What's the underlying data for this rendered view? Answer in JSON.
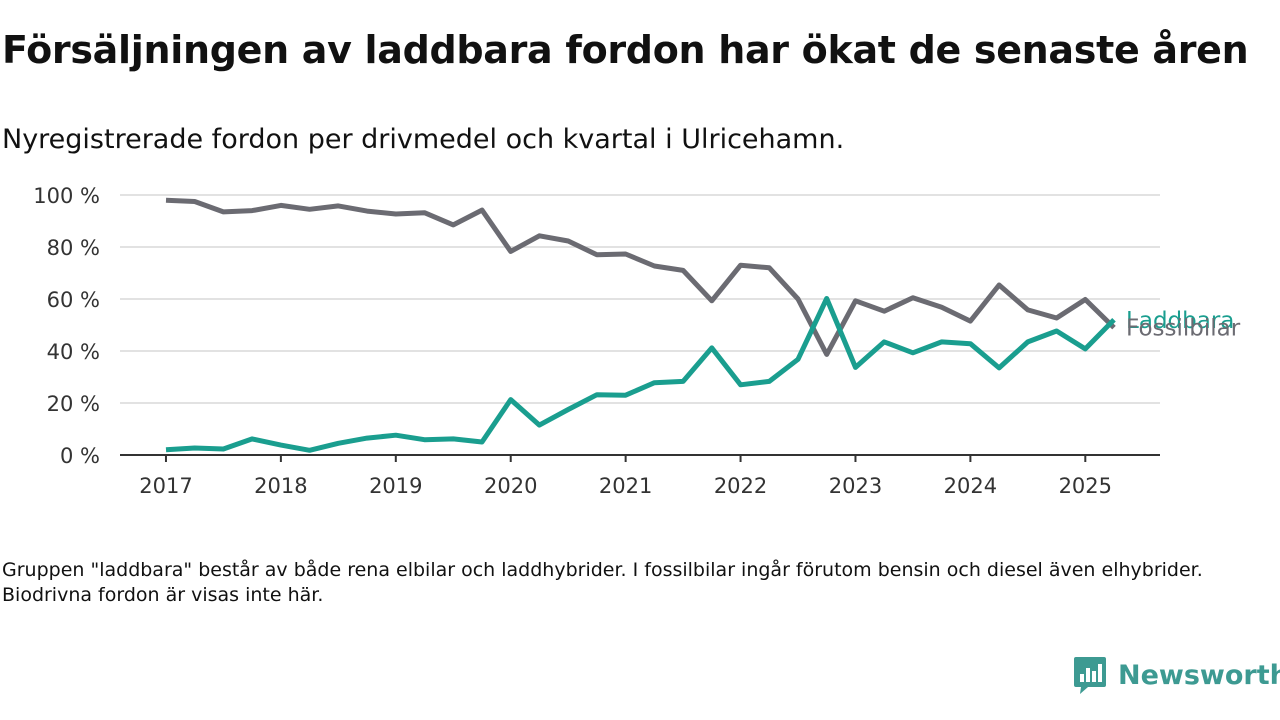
{
  "title": "Försäljningen av laddbara fordon har ökat de senaste åren",
  "subtitle": "Nyregistrerade fordon per drivmedel och kvartal i Ulricehamn.",
  "footnote": "Gruppen \"laddbara\" består av både rena elbilar och laddhybrider. I fossilbilar ingår förutom bensin och diesel även elhybrider. Biodrivna fordon är visas inte här.",
  "brand": {
    "name": "Newsworthy",
    "color": "#3d9a92",
    "icon": "newsworthy-logo-icon"
  },
  "chart_data": {
    "type": "line",
    "x": [
      2017.0,
      2017.25,
      2017.5,
      2017.75,
      2018.0,
      2018.25,
      2018.5,
      2018.75,
      2019.0,
      2019.25,
      2019.5,
      2019.75,
      2020.0,
      2020.25,
      2020.5,
      2020.75,
      2021.0,
      2021.25,
      2021.5,
      2021.75,
      2022.0,
      2022.25,
      2022.5,
      2022.75,
      2023.0,
      2023.25,
      2023.5,
      2023.75,
      2024.0,
      2024.25,
      2024.5,
      2024.75,
      2025.0,
      2025.25
    ],
    "series": [
      {
        "name": "Fossilbilar",
        "color": "#6b6b72",
        "values": [
          98,
          97.5,
          93.5,
          94,
          96,
          94.5,
          95.8,
          93.8,
          92.7,
          93.2,
          88.5,
          94.2,
          78.3,
          84.3,
          82.3,
          77,
          77.3,
          72.7,
          71,
          59.3,
          73,
          72,
          60,
          38.7,
          59.3,
          55.3,
          60.5,
          56.8,
          51.5,
          65.4,
          55.8,
          52.7,
          59.8,
          49
        ]
      },
      {
        "name": "Laddbara",
        "color": "#1a9e8f",
        "values": [
          2,
          2.7,
          2.3,
          6.2,
          3.8,
          1.8,
          4.5,
          6.5,
          7.6,
          5.9,
          6.2,
          5,
          21.3,
          11.5,
          17.5,
          23.2,
          23,
          27.8,
          28.3,
          41.2,
          27,
          28.3,
          36.8,
          60.2,
          33.7,
          43.5,
          39.3,
          43.5,
          42.8,
          33.5,
          43.5,
          47.7,
          40.8,
          52
        ]
      }
    ],
    "xticks": [
      2017,
      2018,
      2019,
      2020,
      2021,
      2022,
      2023,
      2024,
      2025
    ],
    "xtick_labels": [
      "2017",
      "2018",
      "2019",
      "2020",
      "2021",
      "2022",
      "2023",
      "2024",
      "2025"
    ],
    "yticks": [
      0,
      20,
      40,
      60,
      80,
      100
    ],
    "ytick_labels": [
      "0 %",
      "20 %",
      "40 %",
      "60 %",
      "80 %",
      "100 %"
    ],
    "xlim": [
      2016.6,
      2025.65
    ],
    "ylim": [
      0,
      100
    ],
    "grid": true,
    "legend": "direct labels at line ends",
    "xlabel": "",
    "ylabel": ""
  }
}
